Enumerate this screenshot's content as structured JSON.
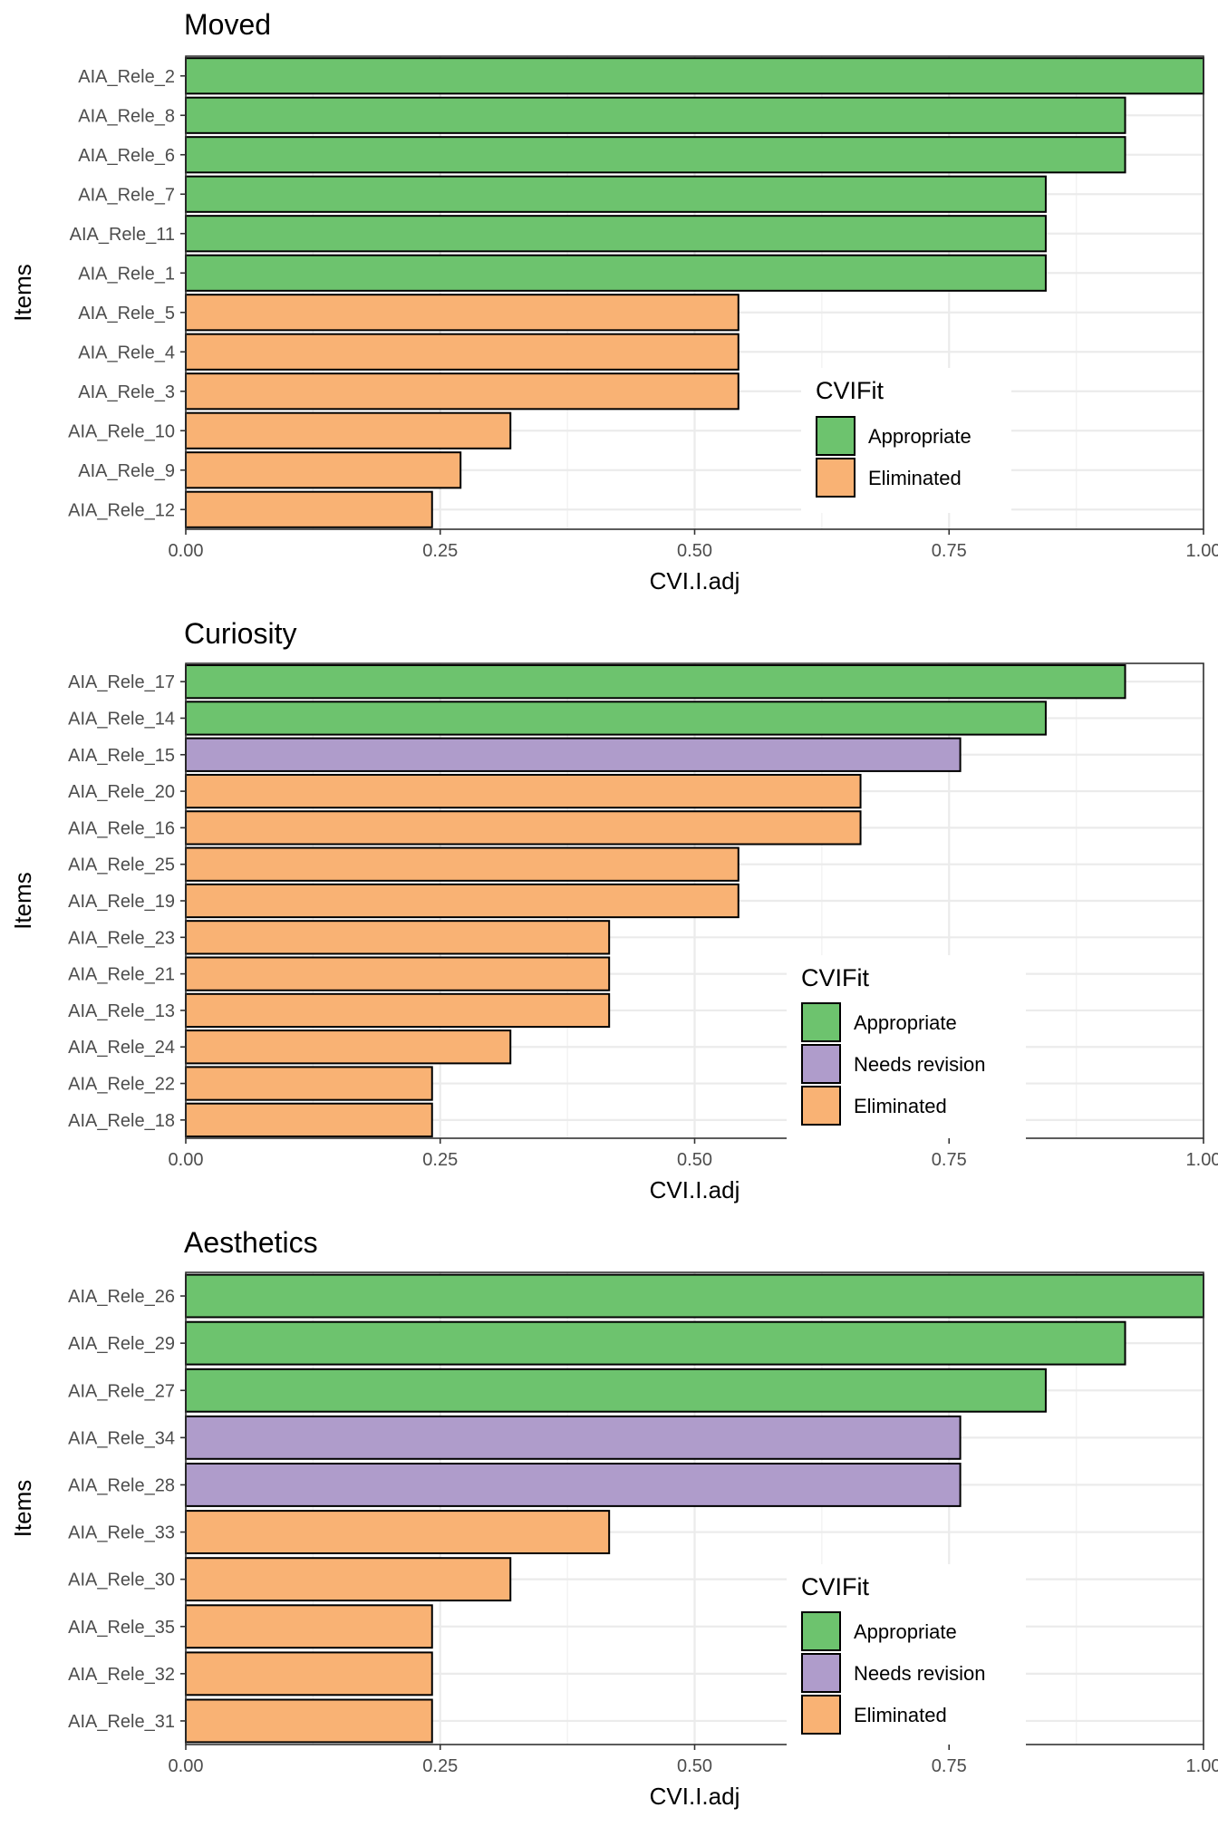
{
  "colors": {
    "Appropriate": "#6DC36E",
    "Needs revision": "#AF9CCB",
    "Eliminated": "#F9B274",
    "bar_outline": "#000000",
    "grid_major": "#EBEBEB",
    "grid_minor": "#F2F2F2",
    "panel_border": "#333333",
    "text": "#000000",
    "tick_text": "#4D4D4D"
  },
  "chart_data": [
    {
      "type": "bar",
      "orientation": "horizontal",
      "title": "Moved",
      "xlabel": "CVI.I.adj",
      "ylabel": "Items",
      "xlim": [
        0,
        1
      ],
      "x_ticks": [
        "0.00",
        "0.25",
        "0.50",
        "0.75",
        "1.00"
      ],
      "x_tick_values": [
        0,
        0.25,
        0.5,
        0.75,
        1
      ],
      "grid": true,
      "legend": {
        "title": "CVIFit",
        "placement": "bottom-right inside",
        "entries": [
          "Appropriate",
          "Eliminated"
        ],
        "color_keys": [
          "Appropriate",
          "Eliminated"
        ]
      },
      "categories": [
        "AIA_Rele_2",
        "AIA_Rele_8",
        "AIA_Rele_6",
        "AIA_Rele_7",
        "AIA_Rele_11",
        "AIA_Rele_1",
        "AIA_Rele_5",
        "AIA_Rele_4",
        "AIA_Rele_3",
        "AIA_Rele_10",
        "AIA_Rele_9",
        "AIA_Rele_12"
      ],
      "values": [
        1.0,
        0.923,
        0.923,
        0.845,
        0.845,
        0.845,
        0.543,
        0.543,
        0.543,
        0.319,
        0.27,
        0.242
      ],
      "fit": [
        "Appropriate",
        "Appropriate",
        "Appropriate",
        "Appropriate",
        "Appropriate",
        "Appropriate",
        "Eliminated",
        "Eliminated",
        "Eliminated",
        "Eliminated",
        "Eliminated",
        "Eliminated"
      ]
    },
    {
      "type": "bar",
      "orientation": "horizontal",
      "title": "Curiosity",
      "xlabel": "CVI.I.adj",
      "ylabel": "Items",
      "xlim": [
        0,
        1
      ],
      "x_ticks": [
        "0.00",
        "0.25",
        "0.50",
        "0.75",
        "1.00"
      ],
      "x_tick_values": [
        0,
        0.25,
        0.5,
        0.75,
        1
      ],
      "grid": true,
      "legend": {
        "title": "CVIFit",
        "placement": "bottom-right inside",
        "entries": [
          "Appropriate",
          "Needs revision",
          "Eliminated"
        ],
        "color_keys": [
          "Appropriate",
          "Needs revision",
          "Eliminated"
        ]
      },
      "categories": [
        "AIA_Rele_17",
        "AIA_Rele_14",
        "AIA_Rele_15",
        "AIA_Rele_20",
        "AIA_Rele_16",
        "AIA_Rele_25",
        "AIA_Rele_19",
        "AIA_Rele_23",
        "AIA_Rele_21",
        "AIA_Rele_13",
        "AIA_Rele_24",
        "AIA_Rele_22",
        "AIA_Rele_18"
      ],
      "values": [
        0.923,
        0.845,
        0.761,
        0.663,
        0.663,
        0.543,
        0.543,
        0.416,
        0.416,
        0.416,
        0.319,
        0.242,
        0.242
      ],
      "fit": [
        "Appropriate",
        "Appropriate",
        "Needs revision",
        "Eliminated",
        "Eliminated",
        "Eliminated",
        "Eliminated",
        "Eliminated",
        "Eliminated",
        "Eliminated",
        "Eliminated",
        "Eliminated",
        "Eliminated"
      ]
    },
    {
      "type": "bar",
      "orientation": "horizontal",
      "title": "Aesthetics",
      "xlabel": "CVI.I.adj",
      "ylabel": "Items",
      "xlim": [
        0,
        1
      ],
      "x_ticks": [
        "0.00",
        "0.25",
        "0.50",
        "0.75",
        "1.00"
      ],
      "x_tick_values": [
        0,
        0.25,
        0.5,
        0.75,
        1
      ],
      "grid": true,
      "legend": {
        "title": "CVIFit",
        "placement": "bottom-right inside",
        "entries": [
          "Appropriate",
          "Needs revision",
          "Eliminated"
        ],
        "color_keys": [
          "Appropriate",
          "Needs revision",
          "Eliminated"
        ]
      },
      "categories": [
        "AIA_Rele_26",
        "AIA_Rele_29",
        "AIA_Rele_27",
        "AIA_Rele_34",
        "AIA_Rele_28",
        "AIA_Rele_33",
        "AIA_Rele_30",
        "AIA_Rele_35",
        "AIA_Rele_32",
        "AIA_Rele_31"
      ],
      "values": [
        1.0,
        0.923,
        0.845,
        0.761,
        0.761,
        0.416,
        0.319,
        0.242,
        0.242,
        0.242
      ],
      "fit": [
        "Appropriate",
        "Appropriate",
        "Appropriate",
        "Needs revision",
        "Needs revision",
        "Eliminated",
        "Eliminated",
        "Eliminated",
        "Eliminated",
        "Eliminated"
      ]
    }
  ]
}
